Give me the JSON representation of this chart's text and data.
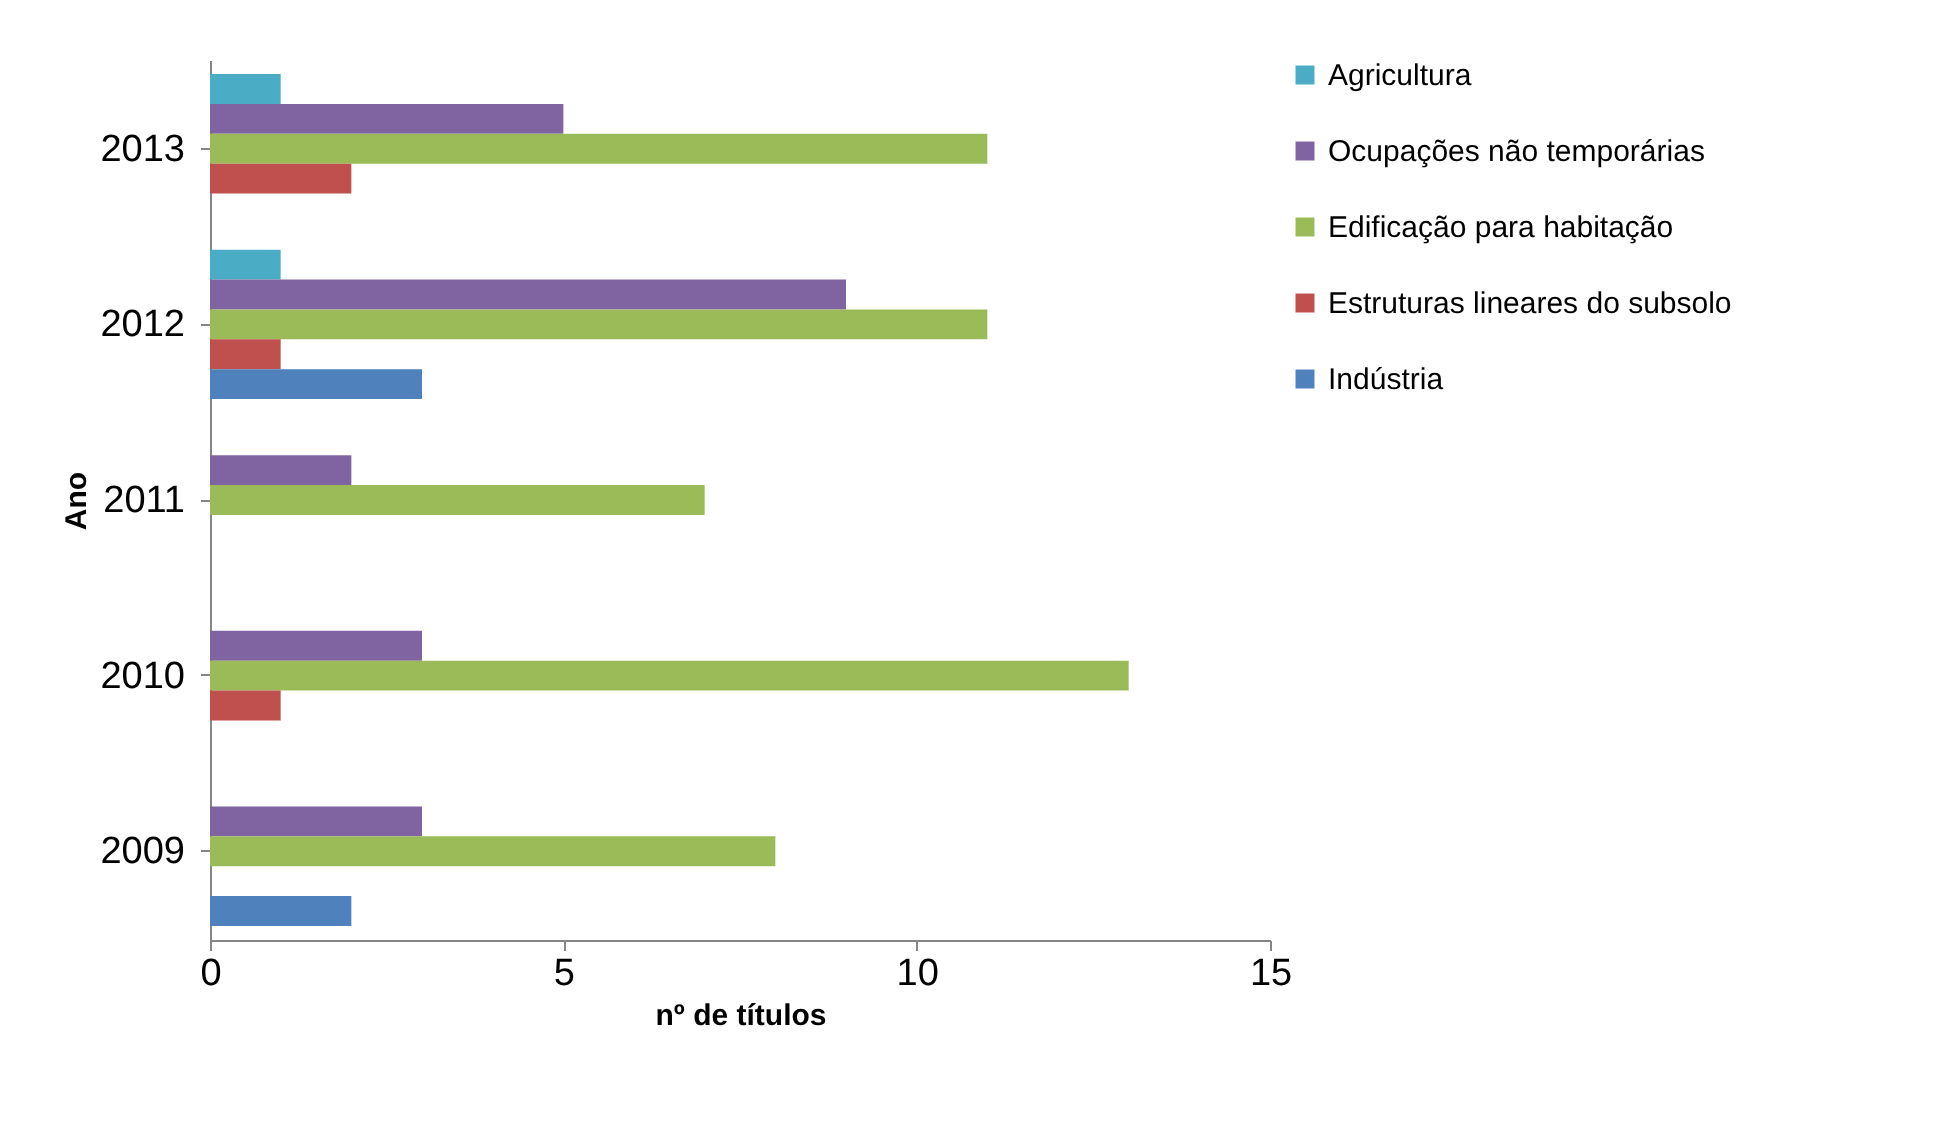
{
  "chart_data": {
    "type": "bar",
    "orientation": "horizontal",
    "xlabel": "nº de títulos",
    "ylabel": "Ano",
    "categories": [
      "2013",
      "2012",
      "2011",
      "2010",
      "2009"
    ],
    "series": [
      {
        "name": "Agricultura",
        "color": "#4bacc6",
        "values": [
          1,
          1,
          null,
          null,
          null
        ]
      },
      {
        "name": "Ocupações não temporárias",
        "color": "#8064a2",
        "values": [
          5,
          9,
          2,
          3,
          3
        ]
      },
      {
        "name": "Edificação para habitação",
        "color": "#9bbb59",
        "values": [
          11,
          11,
          7,
          13,
          8
        ]
      },
      {
        "name": "Estruturas lineares do subsolo",
        "color": "#c0504d",
        "values": [
          2,
          1,
          null,
          1,
          null
        ]
      },
      {
        "name": "Indústria",
        "color": "#4f81bd",
        "values": [
          null,
          3,
          null,
          null,
          2
        ]
      }
    ],
    "xlim": [
      0,
      15
    ],
    "xticks": [
      0,
      5,
      10,
      15
    ],
    "grid": false,
    "legend": "right"
  }
}
